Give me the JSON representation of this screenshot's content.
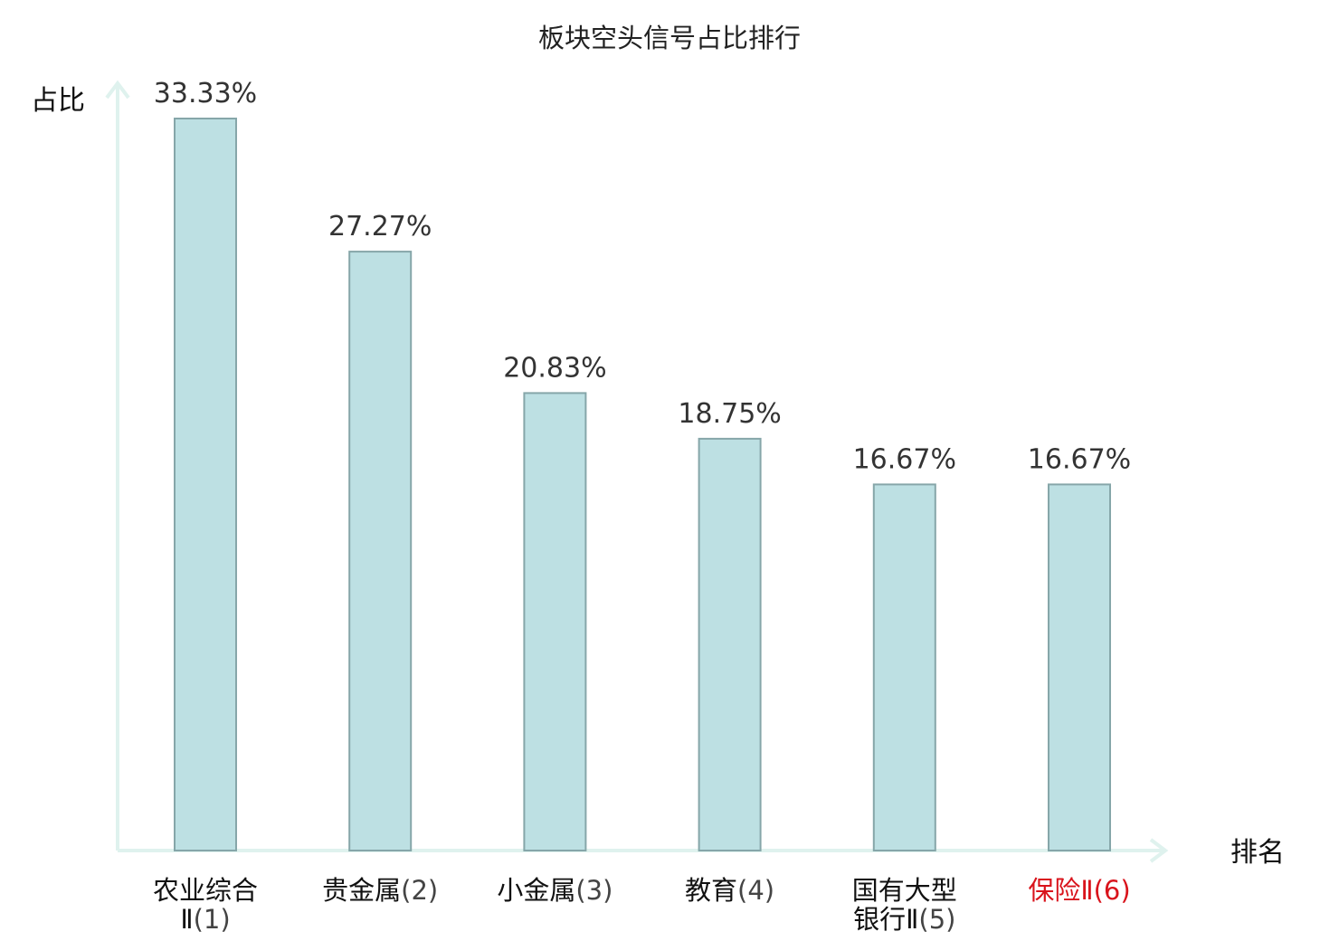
{
  "chart_data": {
    "type": "bar",
    "title": "板块空头信号占比排行",
    "ylabel": "占比",
    "xlabel": "排名",
    "categories": [
      {
        "name_lines": [
          "农业综合",
          "Ⅱ"
        ],
        "rank": "(1)",
        "highlight": false
      },
      {
        "name_lines": [
          "贵金属"
        ],
        "rank": "(2)",
        "highlight": false
      },
      {
        "name_lines": [
          "小金属"
        ],
        "rank": "(3)",
        "highlight": false
      },
      {
        "name_lines": [
          "教育"
        ],
        "rank": "(4)",
        "highlight": false
      },
      {
        "name_lines": [
          "国有大型",
          "银行Ⅱ"
        ],
        "rank": "(5)",
        "highlight": false
      },
      {
        "name_lines": [
          "保险Ⅱ"
        ],
        "rank": "(6)",
        "highlight": true
      }
    ],
    "values": [
      33.33,
      27.27,
      20.83,
      18.75,
      16.67,
      16.67
    ],
    "value_labels": [
      "33.33%",
      "27.27%",
      "20.83%",
      "18.75%",
      "16.67%",
      "16.67%"
    ],
    "ylim": [
      0,
      33.33
    ],
    "grid": false,
    "legend": "none"
  },
  "colors": {
    "bar_fill": "#bde0e3",
    "bar_stroke": "#86a6a9",
    "axis": "#dff2ee",
    "highlight_label": "#d9141c"
  }
}
